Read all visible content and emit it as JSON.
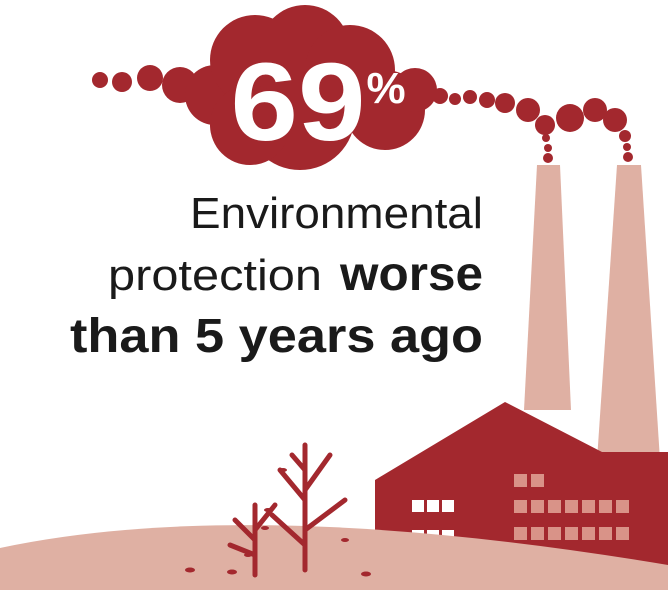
{
  "stat": {
    "value": 69,
    "unit": "%"
  },
  "caption": {
    "line1": "Environmental",
    "line2_light": "protection",
    "line2_bold": "worse",
    "line3_bold": "than 5 years ago"
  }
}
